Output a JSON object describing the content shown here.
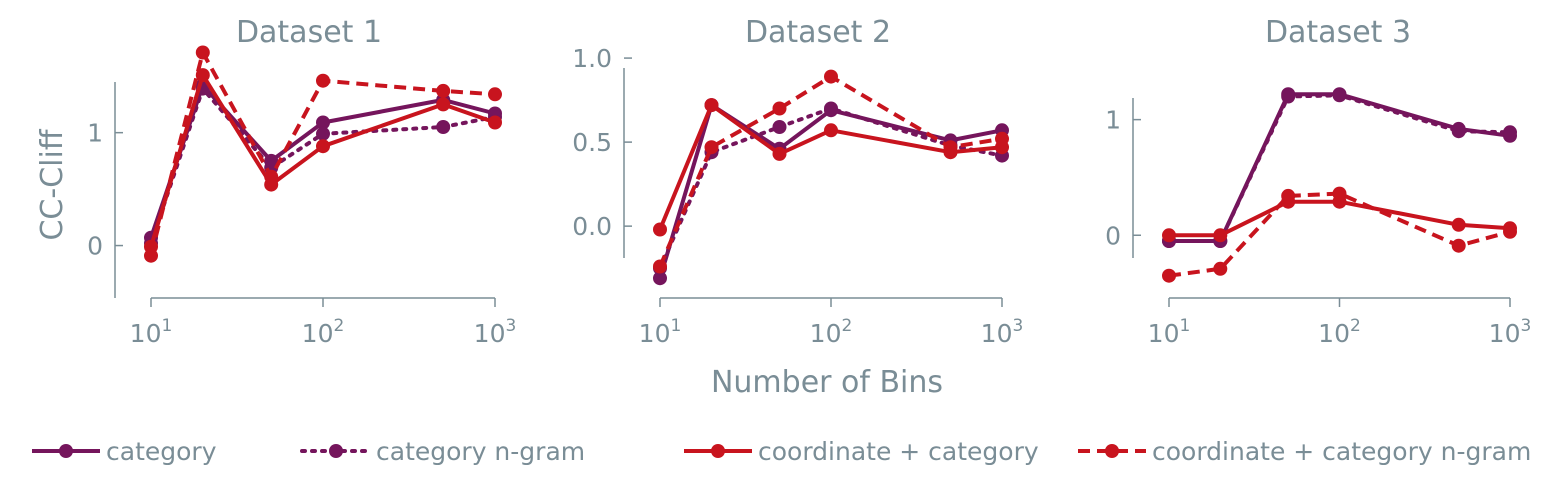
{
  "colors": {
    "text": "#7a8d96",
    "axis": "#7a8d96",
    "purple": "#75155c",
    "red": "#c8141e"
  },
  "figure": {
    "xlabel": "Number of Bins",
    "ylabel": "CC-Cliff"
  },
  "legend": [
    {
      "label": "category",
      "color": "#75155c",
      "dash": "solid"
    },
    {
      "label": "category n-gram",
      "color": "#75155c",
      "dash": "dotted"
    },
    {
      "label": "coordinate + category",
      "color": "#c8141e",
      "dash": "solid"
    },
    {
      "label": "coordinate + category n-gram",
      "color": "#c8141e",
      "dash": "dashed"
    }
  ],
  "chart_data": [
    {
      "type": "line",
      "title": "Dataset 1",
      "xscale": "log",
      "xlim": [
        10,
        1000
      ],
      "xticks": [
        10,
        100,
        1000
      ],
      "xticklabels": [
        "10^1",
        "10^2",
        "10^3"
      ],
      "ylim": [
        -0.5,
        1.75
      ],
      "yticks": [
        0,
        1
      ],
      "yticklabels": [
        "0",
        "1"
      ],
      "x": [
        10,
        20,
        50,
        100,
        500,
        1000
      ],
      "series": [
        {
          "name": "category",
          "color": "#75155c",
          "dash": "solid",
          "values": [
            0.07,
            1.42,
            0.75,
            1.09,
            1.29,
            1.17
          ]
        },
        {
          "name": "category n-gram",
          "color": "#75155c",
          "dash": "dotted",
          "values": [
            0.02,
            1.39,
            0.69,
            0.99,
            1.05,
            1.14
          ]
        },
        {
          "name": "coordinate + category",
          "color": "#c8141e",
          "dash": "solid",
          "values": [
            -0.01,
            1.51,
            0.54,
            0.88,
            1.25,
            1.09
          ]
        },
        {
          "name": "coordinate + category n-gram",
          "color": "#c8141e",
          "dash": "dashed",
          "values": [
            -0.09,
            1.71,
            0.61,
            1.46,
            1.37,
            1.34
          ]
        }
      ]
    },
    {
      "type": "line",
      "title": "Dataset 2",
      "xscale": "log",
      "xlim": [
        10,
        1000
      ],
      "xticks": [
        10,
        100,
        1000
      ],
      "xticklabels": [
        "10^1",
        "10^2",
        "10^3"
      ],
      "ylim": [
        -0.38,
        1.06
      ],
      "yticks": [
        0.0,
        0.5,
        1.0
      ],
      "yticklabels": [
        "0.0",
        "0.5",
        "1.0"
      ],
      "x": [
        10,
        20,
        50,
        100,
        500,
        1000
      ],
      "series": [
        {
          "name": "category",
          "color": "#75155c",
          "dash": "solid",
          "values": [
            -0.31,
            0.72,
            0.46,
            0.69,
            0.51,
            0.57
          ]
        },
        {
          "name": "category n-gram",
          "color": "#75155c",
          "dash": "dotted",
          "values": [
            -0.25,
            0.44,
            0.59,
            0.7,
            0.48,
            0.42
          ]
        },
        {
          "name": "coordinate + category",
          "color": "#c8141e",
          "dash": "solid",
          "values": [
            -0.02,
            0.72,
            0.43,
            0.57,
            0.44,
            0.47
          ]
        },
        {
          "name": "coordinate + category n-gram",
          "color": "#c8141e",
          "dash": "dashed",
          "values": [
            -0.24,
            0.47,
            0.7,
            0.89,
            0.47,
            0.52
          ]
        }
      ]
    },
    {
      "type": "line",
      "title": "Dataset 3",
      "xscale": "log",
      "xlim": [
        10,
        1000
      ],
      "xticks": [
        10,
        100,
        1000
      ],
      "xticklabels": [
        "10^1",
        "10^2",
        "10^3"
      ],
      "ylim": [
        -0.56,
        1.36
      ],
      "yticks": [
        0,
        1
      ],
      "yticklabels": [
        "0",
        "1"
      ],
      "x": [
        10,
        20,
        50,
        100,
        500,
        1000
      ],
      "series": [
        {
          "name": "category",
          "color": "#75155c",
          "dash": "solid",
          "values": [
            -0.05,
            -0.05,
            1.22,
            1.22,
            0.92,
            0.86
          ]
        },
        {
          "name": "category n-gram",
          "color": "#75155c",
          "dash": "dotted",
          "values": [
            -0.05,
            -0.05,
            1.2,
            1.21,
            0.9,
            0.89
          ]
        },
        {
          "name": "coordinate + category",
          "color": "#c8141e",
          "dash": "solid",
          "values": [
            0.0,
            0.0,
            0.29,
            0.29,
            0.09,
            0.06
          ]
        },
        {
          "name": "coordinate + category n-gram",
          "color": "#c8141e",
          "dash": "dashed",
          "values": [
            -0.35,
            -0.29,
            0.34,
            0.36,
            -0.09,
            0.03
          ]
        }
      ]
    }
  ]
}
